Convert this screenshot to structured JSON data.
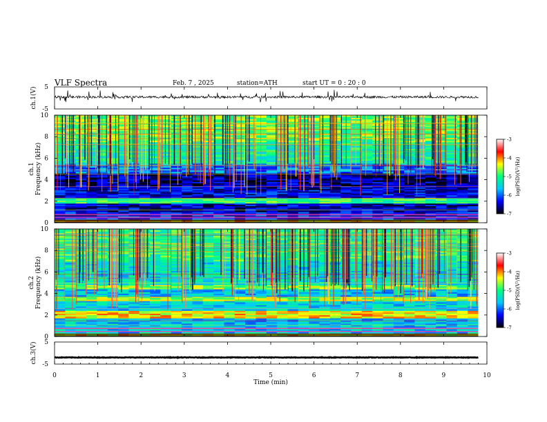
{
  "header": {
    "title": "VLF Spectra",
    "date": "Feb. 7 , 2025",
    "station": "station=ATH",
    "start_ut": "start UT = 0 : 20 : 0"
  },
  "chart_data": [
    {
      "type": "line",
      "name": "ch1-waveform",
      "ylabel": "ch.1(V)",
      "ylim": [
        -5,
        5
      ],
      "yticks": [
        "5",
        "-5"
      ],
      "x_range_min": [
        0,
        9.8
      ],
      "baseline_v": 0.4,
      "noise_amp_v": 1.0
    },
    {
      "type": "heatmap",
      "name": "ch1-spectrogram",
      "ylabel": "ch.1 Frequency (kHz)",
      "ylim": [
        0,
        10
      ],
      "yticks": [
        "0",
        "2",
        "4",
        "6",
        "8",
        "10"
      ],
      "x_range_min": [
        0,
        9.8
      ],
      "bands_khz": [
        {
          "from": 0,
          "to": 0.3,
          "level": -4.2
        },
        {
          "from": 0.3,
          "to": 1.0,
          "level": -6.3
        },
        {
          "from": 1.0,
          "to": 1.8,
          "level": -6.5
        },
        {
          "from": 1.8,
          "to": 2.3,
          "level": -5.0
        },
        {
          "from": 2.3,
          "to": 3.4,
          "level": -6.4
        },
        {
          "from": 3.4,
          "to": 4.6,
          "level": -6.6
        },
        {
          "from": 4.6,
          "to": 5.5,
          "level": -5.9
        },
        {
          "from": 5.5,
          "to": 7.5,
          "level": -5.2
        },
        {
          "from": 7.5,
          "to": 10,
          "level": -4.8
        }
      ]
    },
    {
      "type": "heatmap",
      "name": "ch2-spectrogram",
      "ylabel": "ch.2 Frequency (kHz)",
      "ylim": [
        0,
        10
      ],
      "yticks": [
        "0",
        "2",
        "4",
        "6",
        "8",
        "10"
      ],
      "x_range_min": [
        0,
        9.8
      ],
      "bands_khz": [
        {
          "from": 0,
          "to": 0.3,
          "level": -4.3
        },
        {
          "from": 0.3,
          "to": 1.7,
          "level": -5.6
        },
        {
          "from": 1.7,
          "to": 2.4,
          "level": -4.3
        },
        {
          "from": 2.4,
          "to": 3.3,
          "level": -5.5
        },
        {
          "from": 3.3,
          "to": 3.7,
          "level": -4.6
        },
        {
          "from": 3.7,
          "to": 4.4,
          "level": -5.6
        },
        {
          "from": 4.4,
          "to": 4.8,
          "level": -4.7
        },
        {
          "from": 4.8,
          "to": 7.0,
          "level": -5.4
        },
        {
          "from": 7.0,
          "to": 10,
          "level": -5.0
        }
      ]
    },
    {
      "type": "line",
      "name": "ch3-waveform",
      "ylabel": "ch.3(V)",
      "ylim": [
        -5,
        5
      ],
      "yticks": [
        "5",
        "-5"
      ],
      "x_range_min": [
        0,
        9.8
      ],
      "baseline_v": -2.0,
      "noise_amp_v": 0.25
    }
  ],
  "xaxis": {
    "label": "Time (min)",
    "ticks": [
      "0",
      "1",
      "2",
      "3",
      "4",
      "5",
      "6",
      "7",
      "8",
      "9",
      "10"
    ],
    "range": [
      0,
      10
    ]
  },
  "colorbar": {
    "label": "log(PSD)(V²/Hz)",
    "range": [
      -7,
      -3
    ],
    "ticks": [
      "-3",
      "-4",
      "-5",
      "-6",
      "-7"
    ]
  },
  "colors": {
    "stops": [
      "#000000",
      "#0000ff",
      "#00c8ff",
      "#00ff80",
      "#ffff00",
      "#ff0000",
      "#ffffff"
    ]
  }
}
